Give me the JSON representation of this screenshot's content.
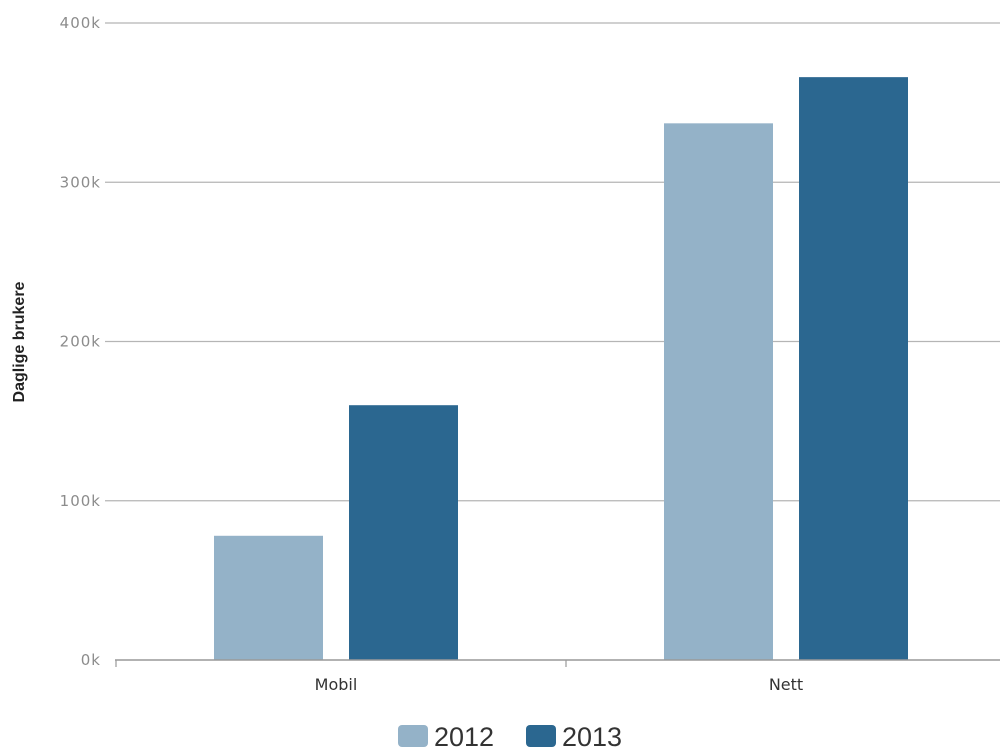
{
  "chart_data": {
    "type": "bar",
    "title": "",
    "xlabel": "",
    "ylabel": "Daglige brukere",
    "categories": [
      "Mobil",
      "Nett"
    ],
    "series": [
      {
        "name": "2012",
        "values": [
          78000,
          337000
        ],
        "color": "#94b2c8"
      },
      {
        "name": "2013",
        "values": [
          160000,
          366000
        ],
        "color": "#2b6790"
      }
    ],
    "ylim": [
      0,
      400000
    ],
    "yticks": [
      {
        "value": 0,
        "label": "0k"
      },
      {
        "value": 100000,
        "label": "100k"
      },
      {
        "value": 200000,
        "label": "200k"
      },
      {
        "value": 300000,
        "label": "300k"
      },
      {
        "value": 400000,
        "label": "400k"
      }
    ],
    "grid": true,
    "legend_position": "bottom-center",
    "colors": {
      "gridline": "#b5b5b5",
      "axis": "#999999"
    }
  }
}
